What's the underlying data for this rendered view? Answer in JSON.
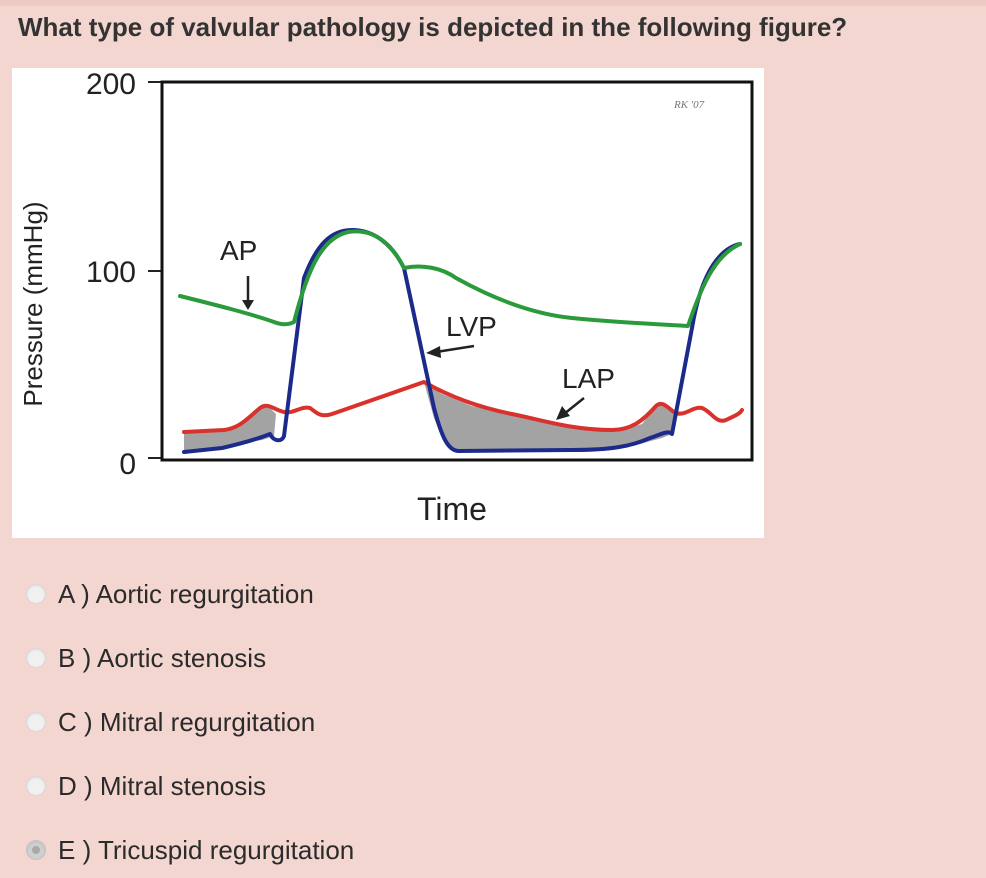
{
  "question": {
    "text": "What type of valvular pathology is depicted in the following figure?"
  },
  "figure": {
    "y_axis_label": "Pressure (mmHg)",
    "x_axis_label": "Time",
    "y_ticks": [
      "200",
      "100",
      "0"
    ],
    "curve_labels": {
      "ap": "AP",
      "lvp": "LVP",
      "lap": "LAP"
    },
    "signature": "RK '07",
    "colors": {
      "aortic_pressure": "#2a9a3a",
      "left_ventricular_pressure": "#1c2a8c",
      "left_atrial_pressure": "#d9322c",
      "shaded_gradient": "#a3a3a3"
    }
  },
  "options": [
    {
      "letter": "A",
      "text": "A ) Aortic regurgitation",
      "selected": false
    },
    {
      "letter": "B",
      "text": "B ) Aortic stenosis",
      "selected": false
    },
    {
      "letter": "C",
      "text": "C ) Mitral regurgitation",
      "selected": false
    },
    {
      "letter": "D",
      "text": "D ) Mitral stenosis",
      "selected": false
    },
    {
      "letter": "E",
      "text": "E ) Tricuspid regurgitation",
      "selected": true
    }
  ]
}
